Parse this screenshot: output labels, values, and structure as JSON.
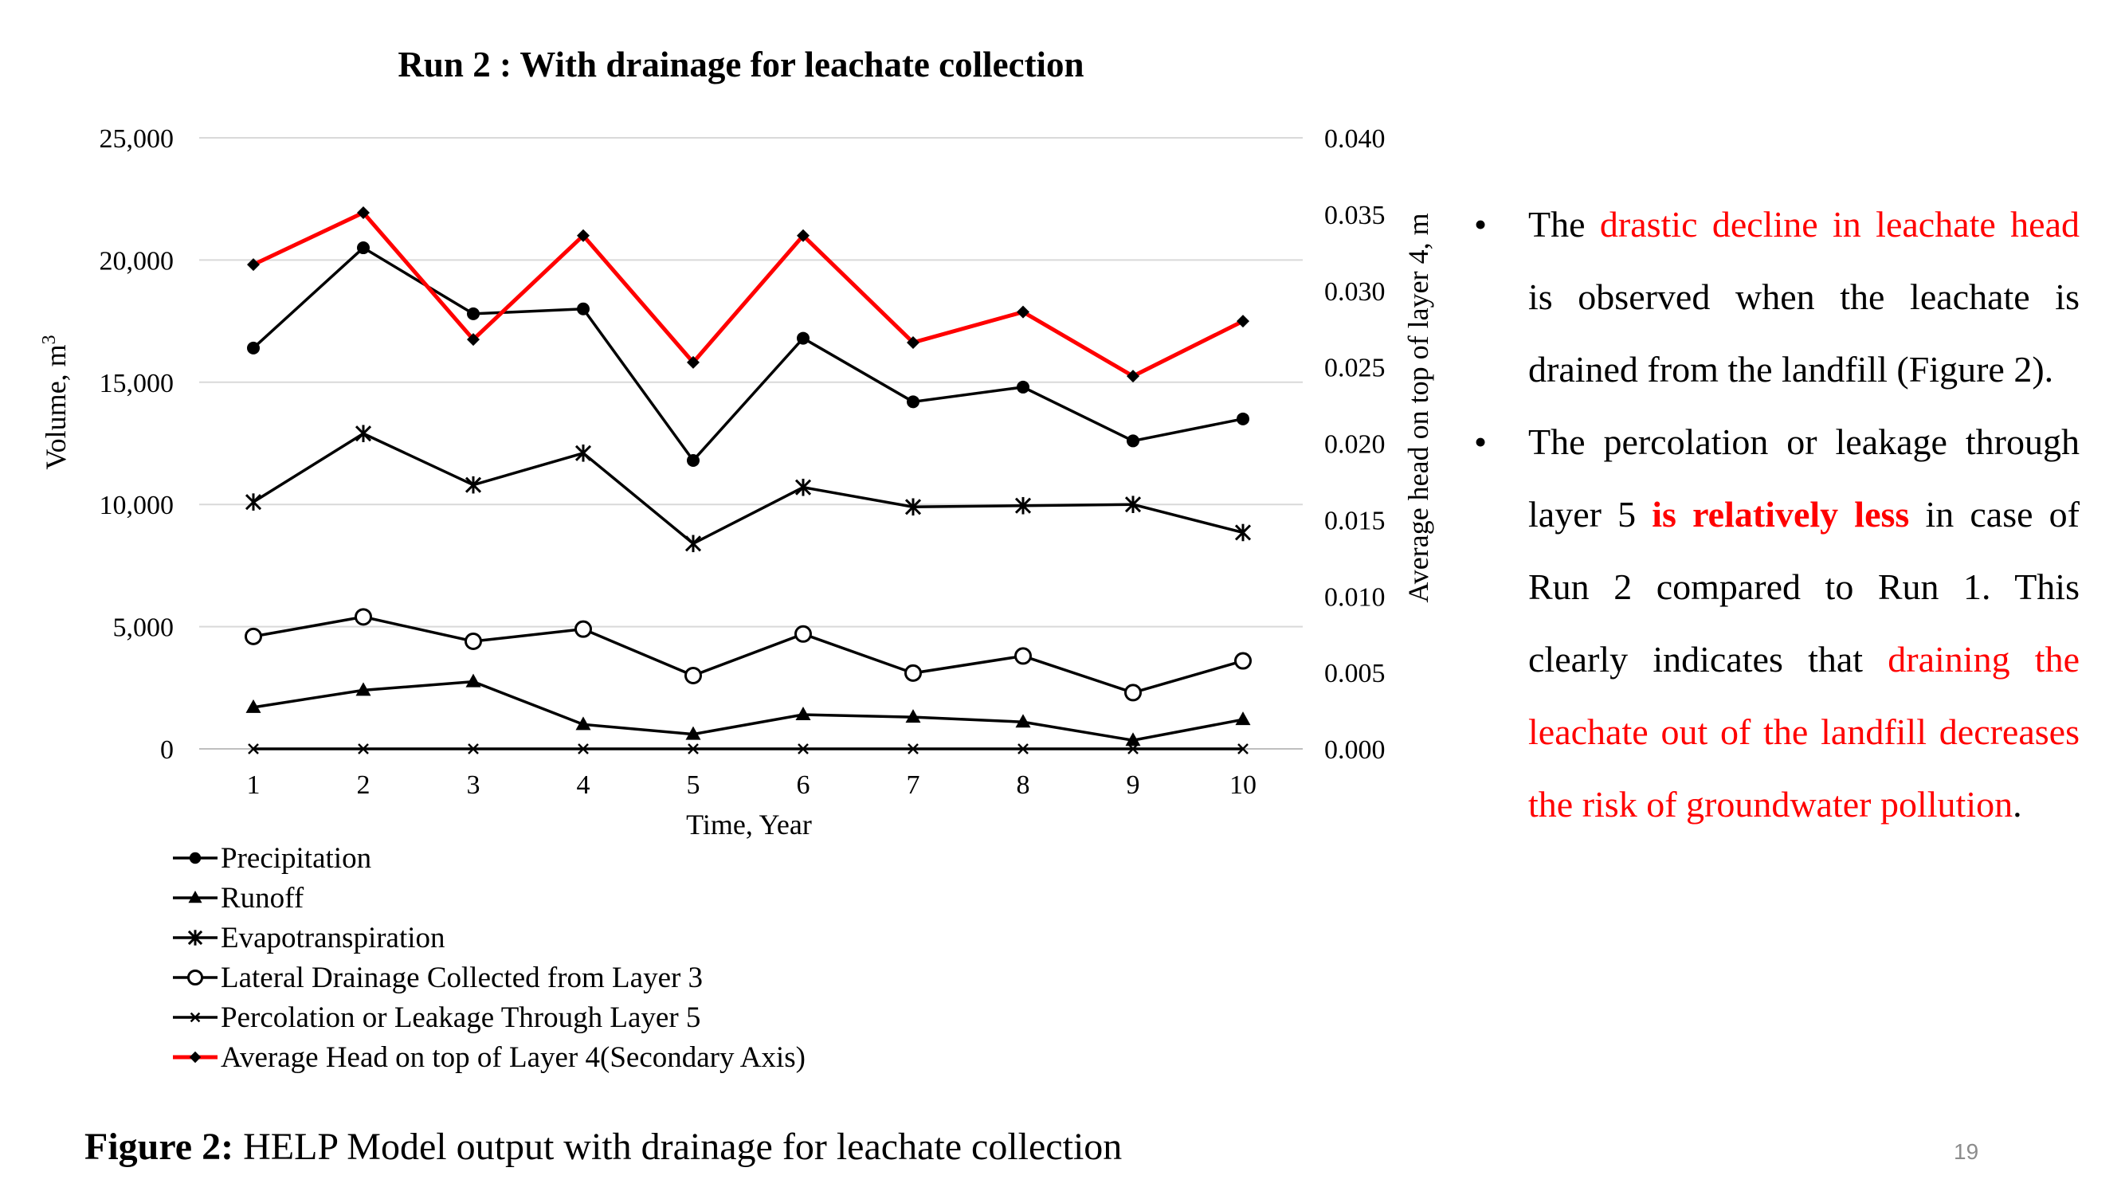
{
  "slide": {
    "caption_bold": "Figure 2:",
    "caption_text": " HELP Model output with drainage for leachate collection",
    "page_number": "19"
  },
  "bullets": [
    {
      "segments": [
        {
          "text": "The ",
          "style": "normal"
        },
        {
          "text": "drastic decline in leachate head",
          "style": "red"
        },
        {
          "text": " is observed when the leachate is drained from the landfill (Figure 2).",
          "style": "normal"
        }
      ]
    },
    {
      "segments": [
        {
          "text": "The percolation or leakage through layer 5 ",
          "style": "normal"
        },
        {
          "text": "is relatively less",
          "style": "red-bold"
        },
        {
          "text": " in case of Run 2 compared to Run 1. This clearly indicates that ",
          "style": "normal"
        },
        {
          "text": "draining the leachate out of the landfill decreases the risk of groundwater pollution",
          "style": "red"
        },
        {
          "text": ".",
          "style": "normal"
        }
      ]
    }
  ],
  "chart_data": {
    "type": "line",
    "title": "Run 2 : With drainage for leachate collection",
    "xlabel": "Time, Year",
    "ylabel": "Volume, m³",
    "y2label": "Average head on top of layer 4, m",
    "x": [
      1,
      2,
      3,
      4,
      5,
      6,
      7,
      8,
      9,
      10
    ],
    "ylim": [
      0,
      25000
    ],
    "yticks": [
      "0",
      "5,000",
      "10,000",
      "15,000",
      "20,000",
      "25,000"
    ],
    "y2lim": [
      0,
      0.04
    ],
    "y2ticks": [
      "0.000",
      "0.005",
      "0.010",
      "0.015",
      "0.020",
      "0.025",
      "0.030",
      "0.035",
      "0.040"
    ],
    "grid": true,
    "legend_position": "bottom-left",
    "series": [
      {
        "name": "Precipitation",
        "axis": "primary",
        "color": "#000000",
        "marker": "circle-filled",
        "values": [
          16400,
          20500,
          17800,
          18000,
          11800,
          16800,
          14200,
          14800,
          12600,
          13500
        ]
      },
      {
        "name": "Runoff",
        "axis": "primary",
        "color": "#000000",
        "marker": "triangle",
        "values": [
          1700,
          2400,
          2750,
          1000,
          600,
          1400,
          1300,
          1100,
          350,
          1200
        ]
      },
      {
        "name": "Evapotranspiration",
        "axis": "primary",
        "color": "#000000",
        "marker": "star",
        "values": [
          10100,
          12900,
          10800,
          12100,
          8400,
          10700,
          9900,
          9950,
          10000,
          8850
        ]
      },
      {
        "name": "Lateral Drainage Collected from Layer 3",
        "axis": "primary",
        "color": "#000000",
        "marker": "circle-open",
        "values": [
          4600,
          5400,
          4400,
          4900,
          3000,
          4700,
          3100,
          3800,
          2300,
          3600
        ]
      },
      {
        "name": "Percolation or Leakage Through Layer 5",
        "axis": "primary",
        "color": "#000000",
        "marker": "x",
        "values": [
          0,
          0,
          0,
          0,
          0,
          0,
          0,
          0,
          0,
          0
        ]
      },
      {
        "name": "Average Head on top of Layer 4(Secondary Axis)",
        "axis": "secondary",
        "color": "#ff0000",
        "marker": "diamond",
        "values": [
          0.0317,
          0.0351,
          0.0268,
          0.0336,
          0.0253,
          0.0336,
          0.0266,
          0.0286,
          0.0244,
          0.028
        ]
      }
    ]
  }
}
